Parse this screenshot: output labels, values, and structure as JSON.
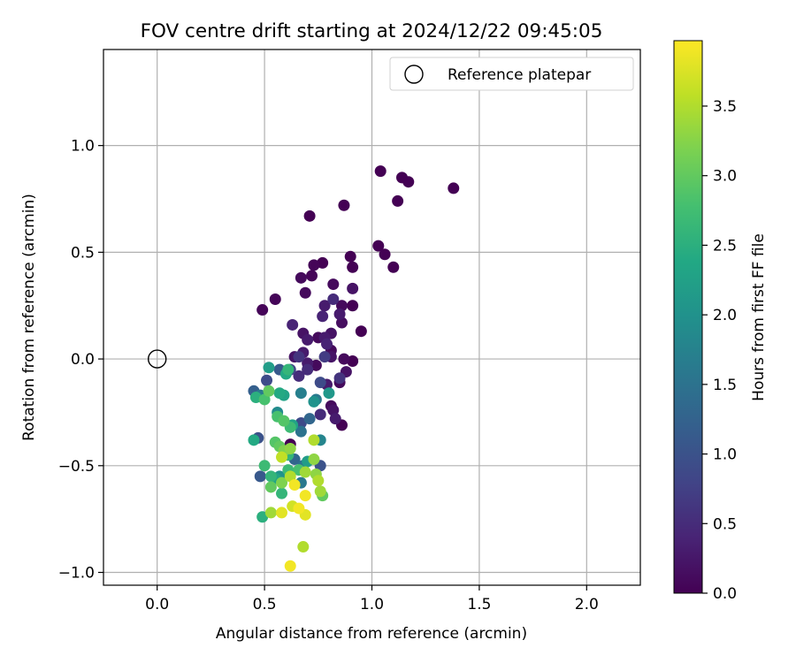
{
  "chart_data": {
    "type": "scatter",
    "title": "FOV centre drift starting at 2024/12/22 09:45:05",
    "xlabel": "Angular distance from reference (arcmin)",
    "ylabel": "Rotation from reference (arcmin)",
    "xlim": [
      -0.25,
      2.25
    ],
    "ylim": [
      -1.06,
      1.45
    ],
    "xticks": [
      "0.0",
      "0.5",
      "1.0",
      "1.5",
      "2.0"
    ],
    "yticks": [
      "−1.0",
      "−0.5",
      "0.0",
      "0.5",
      "1.0"
    ],
    "grid": true,
    "legend": {
      "position": "top-right",
      "entries": [
        "Reference platepar"
      ]
    },
    "colorbar": {
      "label": "Hours from first FF file",
      "range": [
        0,
        3.97
      ],
      "ticks": [
        "0.0",
        "0.5",
        "1.0",
        "1.5",
        "2.0",
        "2.5",
        "3.0",
        "3.5"
      ],
      "colormap": "viridis"
    },
    "reference_point": {
      "x": 0.0,
      "y": 0.0
    },
    "series": [
      {
        "values": [
          {
            "x": 1.38,
            "y": 0.8,
            "c": 0.0
          },
          {
            "x": 1.04,
            "y": 0.88,
            "c": 0.0
          },
          {
            "x": 1.14,
            "y": 0.85,
            "c": 0.0
          },
          {
            "x": 1.17,
            "y": 0.83,
            "c": 0.0
          },
          {
            "x": 1.12,
            "y": 0.74,
            "c": 0.0
          },
          {
            "x": 0.87,
            "y": 0.72,
            "c": 0.0
          },
          {
            "x": 0.71,
            "y": 0.67,
            "c": 0.0
          },
          {
            "x": 1.03,
            "y": 0.53,
            "c": 0.0
          },
          {
            "x": 1.06,
            "y": 0.49,
            "c": 0.0
          },
          {
            "x": 1.1,
            "y": 0.43,
            "c": 0.0
          },
          {
            "x": 0.9,
            "y": 0.48,
            "c": 0.0
          },
          {
            "x": 0.91,
            "y": 0.43,
            "c": 0.0
          },
          {
            "x": 0.77,
            "y": 0.45,
            "c": 0.0
          },
          {
            "x": 0.73,
            "y": 0.44,
            "c": 0.05
          },
          {
            "x": 0.72,
            "y": 0.39,
            "c": 0.05
          },
          {
            "x": 0.67,
            "y": 0.38,
            "c": 0.1
          },
          {
            "x": 0.55,
            "y": 0.28,
            "c": 0.05
          },
          {
            "x": 0.49,
            "y": 0.23,
            "c": 0.05
          },
          {
            "x": 0.69,
            "y": 0.31,
            "c": 0.1
          },
          {
            "x": 0.82,
            "y": 0.35,
            "c": 0.1
          },
          {
            "x": 0.91,
            "y": 0.33,
            "c": 0.2
          },
          {
            "x": 0.91,
            "y": 0.25,
            "c": 0.0
          },
          {
            "x": 0.95,
            "y": 0.13,
            "c": 0.0
          },
          {
            "x": 0.86,
            "y": 0.25,
            "c": 0.1
          },
          {
            "x": 0.85,
            "y": 0.21,
            "c": 0.3
          },
          {
            "x": 0.86,
            "y": 0.17,
            "c": 0.15
          },
          {
            "x": 0.82,
            "y": 0.28,
            "c": 0.5
          },
          {
            "x": 0.78,
            "y": 0.25,
            "c": 0.3
          },
          {
            "x": 0.77,
            "y": 0.2,
            "c": 0.4
          },
          {
            "x": 0.81,
            "y": 0.12,
            "c": 0.2
          },
          {
            "x": 0.75,
            "y": 0.1,
            "c": 0.1
          },
          {
            "x": 0.78,
            "y": 0.1,
            "c": 0.3
          },
          {
            "x": 0.79,
            "y": 0.07,
            "c": 0.4
          },
          {
            "x": 0.81,
            "y": 0.04,
            "c": 0.1
          },
          {
            "x": 0.81,
            "y": 0.01,
            "c": 0.2
          },
          {
            "x": 0.87,
            "y": 0.0,
            "c": 0.1
          },
          {
            "x": 0.91,
            "y": -0.01,
            "c": 0.0
          },
          {
            "x": 0.88,
            "y": -0.06,
            "c": 0.2
          },
          {
            "x": 0.85,
            "y": -0.09,
            "c": 0.6
          },
          {
            "x": 0.85,
            "y": -0.11,
            "c": 0.1
          },
          {
            "x": 0.79,
            "y": -0.12,
            "c": 0.3
          },
          {
            "x": 0.78,
            "y": 0.01,
            "c": 0.7
          },
          {
            "x": 0.68,
            "y": 0.12,
            "c": 0.2
          },
          {
            "x": 0.7,
            "y": 0.09,
            "c": 0.3
          },
          {
            "x": 0.63,
            "y": 0.16,
            "c": 0.4
          },
          {
            "x": 0.64,
            "y": 0.01,
            "c": 0.2
          },
          {
            "x": 0.66,
            "y": 0.01,
            "c": 0.6
          },
          {
            "x": 0.68,
            "y": 0.03,
            "c": 0.3
          },
          {
            "x": 0.7,
            "y": -0.02,
            "c": 0.3
          },
          {
            "x": 0.74,
            "y": -0.03,
            "c": 0.1
          },
          {
            "x": 0.7,
            "y": -0.05,
            "c": 0.5
          },
          {
            "x": 0.66,
            "y": -0.08,
            "c": 0.5
          },
          {
            "x": 0.62,
            "y": -0.05,
            "c": 0.8
          },
          {
            "x": 0.57,
            "y": -0.05,
            "c": 1.1
          },
          {
            "x": 0.51,
            "y": -0.1,
            "c": 0.9
          },
          {
            "x": 0.45,
            "y": -0.15,
            "c": 1.2
          },
          {
            "x": 0.48,
            "y": -0.17,
            "c": 1.6
          },
          {
            "x": 0.5,
            "y": -0.19,
            "c": 2.8
          },
          {
            "x": 0.46,
            "y": -0.18,
            "c": 2.5
          },
          {
            "x": 0.52,
            "y": -0.15,
            "c": 3.0
          },
          {
            "x": 0.52,
            "y": -0.04,
            "c": 2.2
          },
          {
            "x": 0.57,
            "y": -0.16,
            "c": 2.4
          },
          {
            "x": 0.59,
            "y": -0.17,
            "c": 2.3
          },
          {
            "x": 0.6,
            "y": -0.07,
            "c": 2.4
          },
          {
            "x": 0.61,
            "y": -0.05,
            "c": 2.6
          },
          {
            "x": 0.67,
            "y": -0.16,
            "c": 1.7
          },
          {
            "x": 0.73,
            "y": -0.2,
            "c": 2.0
          },
          {
            "x": 0.74,
            "y": -0.19,
            "c": 1.6
          },
          {
            "x": 0.76,
            "y": -0.11,
            "c": 0.9
          },
          {
            "x": 0.8,
            "y": -0.16,
            "c": 2.1
          },
          {
            "x": 0.81,
            "y": -0.22,
            "c": 0.1
          },
          {
            "x": 0.82,
            "y": -0.24,
            "c": 0.2
          },
          {
            "x": 0.83,
            "y": -0.28,
            "c": 0.3
          },
          {
            "x": 0.86,
            "y": -0.31,
            "c": 0.0
          },
          {
            "x": 0.76,
            "y": -0.26,
            "c": 0.5
          },
          {
            "x": 0.71,
            "y": -0.28,
            "c": 1.3
          },
          {
            "x": 0.67,
            "y": -0.3,
            "c": 0.9
          },
          {
            "x": 0.67,
            "y": -0.34,
            "c": 1.5
          },
          {
            "x": 0.63,
            "y": -0.31,
            "c": 2.3
          },
          {
            "x": 0.62,
            "y": -0.32,
            "c": 2.7
          },
          {
            "x": 0.59,
            "y": -0.29,
            "c": 2.9
          },
          {
            "x": 0.56,
            "y": -0.25,
            "c": 1.9
          },
          {
            "x": 0.56,
            "y": -0.27,
            "c": 2.8
          },
          {
            "x": 0.47,
            "y": -0.37,
            "c": 1.0
          },
          {
            "x": 0.45,
            "y": -0.38,
            "c": 2.4
          },
          {
            "x": 0.55,
            "y": -0.39,
            "c": 2.9
          },
          {
            "x": 0.57,
            "y": -0.41,
            "c": 3.0
          },
          {
            "x": 0.59,
            "y": -0.43,
            "c": 3.2
          },
          {
            "x": 0.62,
            "y": -0.4,
            "c": 0.0
          },
          {
            "x": 0.62,
            "y": -0.42,
            "c": 3.3
          },
          {
            "x": 0.58,
            "y": -0.46,
            "c": 3.6
          },
          {
            "x": 0.61,
            "y": -0.45,
            "c": 2.6
          },
          {
            "x": 0.64,
            "y": -0.47,
            "c": 1.3
          },
          {
            "x": 0.68,
            "y": -0.5,
            "c": 1.5
          },
          {
            "x": 0.7,
            "y": -0.48,
            "c": 2.2
          },
          {
            "x": 0.73,
            "y": -0.47,
            "c": 3.3
          },
          {
            "x": 0.73,
            "y": -0.38,
            "c": 3.5
          },
          {
            "x": 0.76,
            "y": -0.38,
            "c": 1.8
          },
          {
            "x": 0.76,
            "y": -0.5,
            "c": 1.0
          },
          {
            "x": 0.69,
            "y": -0.53,
            "c": 3.4
          },
          {
            "x": 0.66,
            "y": -0.52,
            "c": 2.8
          },
          {
            "x": 0.61,
            "y": -0.52,
            "c": 2.7
          },
          {
            "x": 0.62,
            "y": -0.55,
            "c": 3.5
          },
          {
            "x": 0.57,
            "y": -0.55,
            "c": 2.0
          },
          {
            "x": 0.55,
            "y": -0.56,
            "c": 2.3
          },
          {
            "x": 0.53,
            "y": -0.55,
            "c": 2.6
          },
          {
            "x": 0.48,
            "y": -0.55,
            "c": 1.1
          },
          {
            "x": 0.5,
            "y": -0.5,
            "c": 2.7
          },
          {
            "x": 0.53,
            "y": -0.6,
            "c": 3.0
          },
          {
            "x": 0.58,
            "y": -0.63,
            "c": 2.6
          },
          {
            "x": 0.58,
            "y": -0.58,
            "c": 3.2
          },
          {
            "x": 0.64,
            "y": -0.59,
            "c": 3.9
          },
          {
            "x": 0.67,
            "y": -0.58,
            "c": 1.6
          },
          {
            "x": 0.69,
            "y": -0.64,
            "c": 3.9
          },
          {
            "x": 0.74,
            "y": -0.54,
            "c": 3.3
          },
          {
            "x": 0.75,
            "y": -0.57,
            "c": 3.5
          },
          {
            "x": 0.76,
            "y": -0.62,
            "c": 3.4
          },
          {
            "x": 0.77,
            "y": -0.64,
            "c": 3.0
          },
          {
            "x": 0.66,
            "y": -0.7,
            "c": 3.9
          },
          {
            "x": 0.63,
            "y": -0.69,
            "c": 3.7
          },
          {
            "x": 0.58,
            "y": -0.72,
            "c": 3.8
          },
          {
            "x": 0.53,
            "y": -0.72,
            "c": 3.4
          },
          {
            "x": 0.49,
            "y": -0.74,
            "c": 2.5
          },
          {
            "x": 0.69,
            "y": -0.73,
            "c": 3.8
          },
          {
            "x": 0.68,
            "y": -0.88,
            "c": 3.5
          },
          {
            "x": 0.62,
            "y": -0.97,
            "c": 3.9
          }
        ]
      }
    ]
  }
}
